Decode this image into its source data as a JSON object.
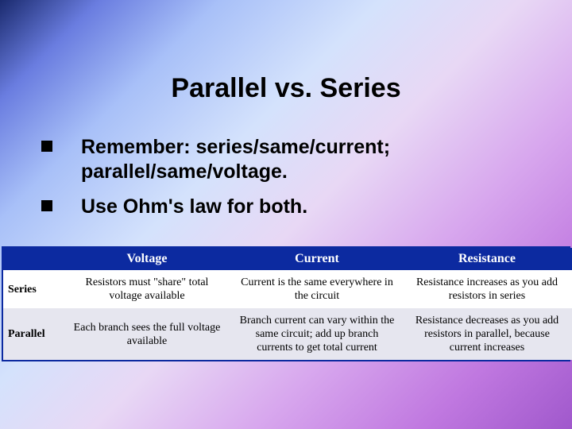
{
  "slide": {
    "title": "Parallel vs. Series",
    "bullets": [
      "Remember:   series/same/current; parallel/same/voltage.",
      "Use Ohm's law for both."
    ]
  },
  "table": {
    "headers": [
      "Voltage",
      "Current",
      "Resistance"
    ],
    "rows": [
      {
        "label": "Series",
        "cells": [
          "Resistors must \"share\" total voltage available",
          "Current is the same everywhere in the circuit",
          "Resistance increases as you add resistors in series"
        ]
      },
      {
        "label": "Parallel",
        "cells": [
          "Each branch sees the full voltage available",
          "Branch current can vary within the same circuit; add up branch currents to get total current",
          "Resistance decreases as you add resistors in parallel, because current increases"
        ]
      }
    ]
  },
  "colors": {
    "header_bg": "#0c2aa0",
    "header_fg": "#ffffff",
    "parallel_row_bg": "#e6e6ef",
    "series_row_bg": "#ffffff",
    "border": "#0c2aa0"
  }
}
